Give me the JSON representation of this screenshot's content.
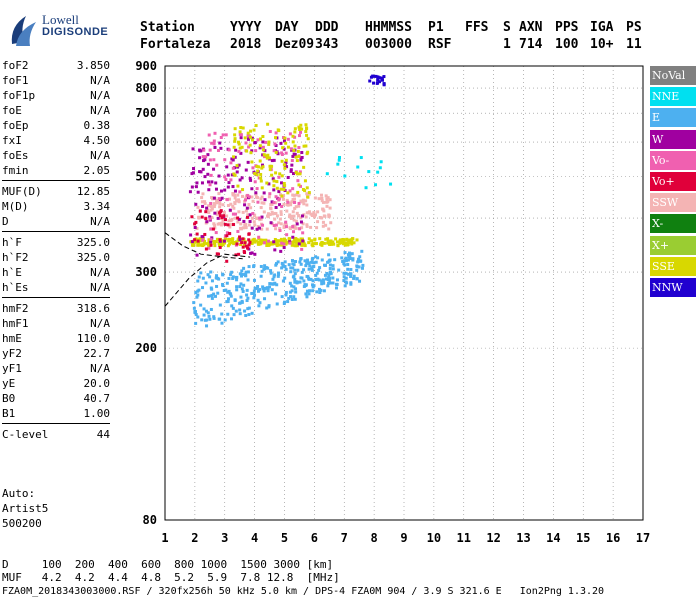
{
  "logo": {
    "line1": "Lowell",
    "line2": "DIGISONDE"
  },
  "header": {
    "labels": [
      "Station",
      "YYYY",
      "DAY",
      "DDD",
      "HHMMSS",
      "P1",
      "FFS",
      "S",
      "AXN",
      "PPS",
      "IGA",
      "PS"
    ],
    "values": [
      "Fortaleza",
      "2018",
      "Dez09",
      "343",
      "003000",
      "RSF",
      "",
      "1",
      "714",
      "100",
      "10+",
      "11"
    ]
  },
  "params": {
    "group1": [
      {
        "name": "foF2",
        "value": "3.850"
      },
      {
        "name": "foF1",
        "value": "N/A"
      },
      {
        "name": "foF1p",
        "value": "N/A"
      },
      {
        "name": "foE",
        "value": "N/A"
      },
      {
        "name": "foEp",
        "value": "0.38"
      },
      {
        "name": "fxI",
        "value": "4.50"
      },
      {
        "name": "foEs",
        "value": "N/A"
      },
      {
        "name": "fmin",
        "value": "2.05"
      }
    ],
    "group2": [
      {
        "name": "MUF(D)",
        "value": "12.85"
      },
      {
        "name": "M(D)",
        "value": "3.34"
      },
      {
        "name": "D",
        "value": "N/A"
      }
    ],
    "group3": [
      {
        "name": "h`F",
        "value": "325.0"
      },
      {
        "name": "h`F2",
        "value": "325.0"
      },
      {
        "name": "h`E",
        "value": "N/A"
      },
      {
        "name": "h`Es",
        "value": "N/A"
      }
    ],
    "group4": [
      {
        "name": "hmF2",
        "value": "318.6"
      },
      {
        "name": "hmF1",
        "value": "N/A"
      },
      {
        "name": "hmE",
        "value": "110.0"
      },
      {
        "name": "yF2",
        "value": "22.7"
      },
      {
        "name": "yF1",
        "value": "N/A"
      },
      {
        "name": "yE",
        "value": "20.0"
      },
      {
        "name": "B0",
        "value": "40.7"
      },
      {
        "name": "B1",
        "value": "1.00"
      }
    ],
    "group5": [
      {
        "name": "C-level",
        "value": "44"
      }
    ]
  },
  "auto": {
    "line1": "Auto:",
    "line2": "Artist5",
    "line3": "500200"
  },
  "legend": [
    {
      "label": "NoVal",
      "color": "#808080"
    },
    {
      "label": "NNE",
      "color": "#00e0f0"
    },
    {
      "label": "E",
      "color": "#4db0f0"
    },
    {
      "label": "W",
      "color": "#a000a0"
    },
    {
      "label": "Vo-",
      "color": "#f060b0"
    },
    {
      "label": "Vo+",
      "color": "#e0003a"
    },
    {
      "label": "SSW",
      "color": "#f4b4b4"
    },
    {
      "label": "X-",
      "color": "#108010"
    },
    {
      "label": "X+",
      "color": "#9acd32"
    },
    {
      "label": "SSE",
      "color": "#d8d800"
    },
    {
      "label": "NNW",
      "color": "#2000d0"
    }
  ],
  "footer": {
    "line1": "D     100  200  400  600  800 1000  1500 3000 [km]",
    "line2": "MUF   4.2  4.2  4.4  4.8  5.2  5.9  7.8 12.8  [MHz]",
    "line3": "FZA0M_2018343003000.RSF / 320fx256h 50 kHz 5.0 km / DPS-4 FZA0M 904 / 3.9 S 321.6 E   Ion2Png 1.3.20"
  },
  "chart_data": {
    "type": "scatter",
    "xlim": [
      1,
      17
    ],
    "ylim": [
      80,
      900
    ],
    "yscale": "log",
    "x_ticks": [
      1,
      2,
      3,
      4,
      5,
      6,
      7,
      8,
      9,
      10,
      11,
      12,
      13,
      14,
      15,
      16,
      17
    ],
    "y_ticks": [
      80,
      200,
      300,
      400,
      500,
      600,
      700,
      800,
      900
    ],
    "grid": true,
    "clusters": [
      {
        "color": "#4db0f0",
        "xmin": 1.9,
        "xmax": 7.6,
        "ymin": 215,
        "ymax": 330,
        "n": 380,
        "shape": "lower-rise"
      },
      {
        "color": "#d8d800",
        "xmin": 1.8,
        "xmax": 7.4,
        "ymin": 348,
        "ymax": 362,
        "n": 260
      },
      {
        "color": "#f4b4b4",
        "xmin": 2.0,
        "xmax": 6.5,
        "ymin": 380,
        "ymax": 460,
        "n": 260
      },
      {
        "color": "#a000a0",
        "xmin": 1.8,
        "xmax": 5.6,
        "ymin": 330,
        "ymax": 620,
        "n": 170
      },
      {
        "color": "#f060b0",
        "xmin": 2.2,
        "xmax": 5.6,
        "ymin": 340,
        "ymax": 640,
        "n": 120
      },
      {
        "color": "#e0003a",
        "xmin": 1.8,
        "xmax": 3.8,
        "ymin": 320,
        "ymax": 420,
        "n": 50
      },
      {
        "color": "#d8d800",
        "xmin": 3.2,
        "xmax": 5.8,
        "ymin": 450,
        "ymax": 670,
        "n": 120
      },
      {
        "color": "#2000d0",
        "xmin": 7.8,
        "xmax": 8.3,
        "ymin": 820,
        "ymax": 860,
        "n": 20
      },
      {
        "color": "#00e0f0",
        "xmin": 6.2,
        "xmax": 8.5,
        "ymin": 470,
        "ymax": 560,
        "n": 14
      }
    ],
    "profile_trace": [
      [
        1.0,
        250
      ],
      [
        1.8,
        290
      ],
      [
        2.4,
        315
      ],
      [
        3.0,
        330
      ],
      [
        3.85,
        325
      ]
    ],
    "trace_upper": [
      [
        1.0,
        370
      ],
      [
        1.6,
        345
      ],
      [
        2.2,
        330
      ],
      [
        3.0,
        325
      ],
      [
        3.6,
        322
      ]
    ]
  }
}
